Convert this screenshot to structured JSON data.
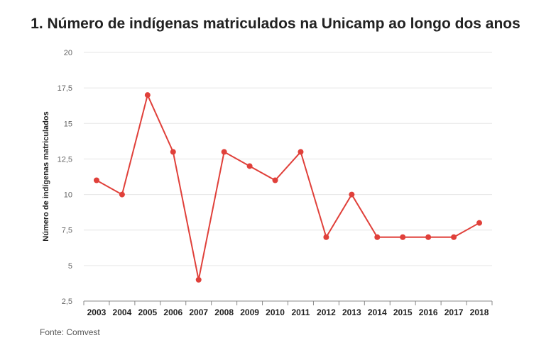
{
  "chart_data": {
    "type": "line",
    "title": "1. Número de indígenas matriculados na Unicamp ao longo dos anos",
    "xlabel": "",
    "ylabel": "Número de indígenas matriculados",
    "categories": [
      "2003",
      "2004",
      "2005",
      "2006",
      "2007",
      "2008",
      "2009",
      "2010",
      "2011",
      "2012",
      "2013",
      "2014",
      "2015",
      "2016",
      "2017",
      "2018"
    ],
    "series": [
      {
        "name": "Número de indígenas matriculados",
        "values": [
          11,
          10,
          17,
          13,
          4,
          13,
          12,
          11,
          13,
          7,
          10,
          7,
          7,
          7,
          7,
          8
        ]
      }
    ],
    "ylim": [
      2.5,
      20
    ],
    "yticks": [
      2.5,
      5,
      7.5,
      10,
      12.5,
      15,
      17.5,
      20
    ],
    "ytick_labels": [
      "2,5",
      "5",
      "7,5",
      "10",
      "12,5",
      "15",
      "17,5",
      "20"
    ],
    "grid": true,
    "source": "Fonte: Comvest"
  },
  "colors": {
    "line": "#e0403a",
    "grid": "#e6e6e6",
    "axis": "#888888",
    "tick_text": "#666666",
    "category_text": "#222222"
  }
}
